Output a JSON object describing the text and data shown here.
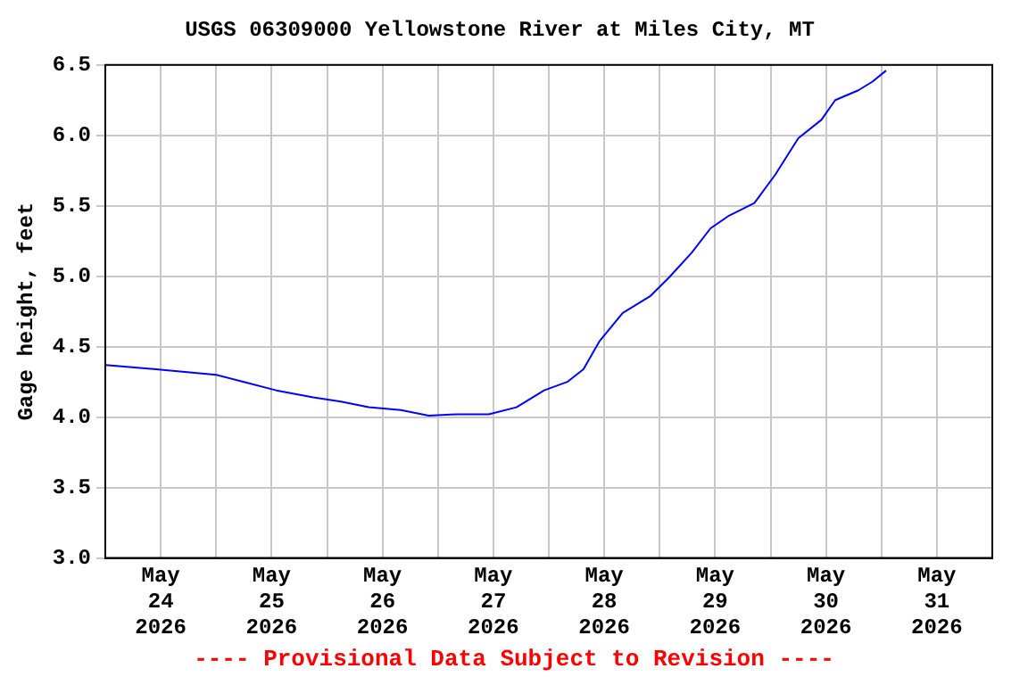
{
  "chart_data": {
    "type": "line",
    "title": "USGS 06309000 Yellowstone River at Miles City, MT",
    "ylabel": "Gage height, feet",
    "annotations": [
      "---- Provisional Data Subject to Revision ----"
    ],
    "x": [
      "2026-05-24T00:00",
      "2026-05-24T11:00",
      "2026-05-25T00:00",
      "2026-05-25T06:00",
      "2026-05-25T13:00",
      "2026-05-25T21:00",
      "2026-05-26T03:00",
      "2026-05-26T09:00",
      "2026-05-26T16:00",
      "2026-05-26T22:00",
      "2026-05-27T04:00",
      "2026-05-27T11:00",
      "2026-05-27T17:00",
      "2026-05-27T23:00",
      "2026-05-28T04:00",
      "2026-05-28T07:30",
      "2026-05-28T11:00",
      "2026-05-28T16:00",
      "2026-05-28T22:00",
      "2026-05-29T02:00",
      "2026-05-29T07:00",
      "2026-05-29T11:00",
      "2026-05-29T15:00",
      "2026-05-29T20:30",
      "2026-05-30T01:00",
      "2026-05-30T06:00",
      "2026-05-30T11:00",
      "2026-05-30T14:00",
      "2026-05-30T19:00",
      "2026-05-30T22:00",
      "2026-05-31T01:00"
    ],
    "series": [
      {
        "color": "#0000ff",
        "values": [
          4.37,
          4.34,
          4.3,
          4.25,
          4.19,
          4.14,
          4.11,
          4.07,
          4.05,
          4.01,
          4.02,
          4.02,
          4.07,
          4.19,
          4.25,
          4.34,
          4.54,
          4.74,
          4.86,
          4.99,
          5.17,
          5.34,
          5.43,
          5.52,
          5.72,
          5.98,
          6.11,
          6.25,
          6.32,
          6.38,
          6.46
        ]
      }
    ],
    "xlim": [
      "2026-05-24",
      "2026-06-01"
    ],
    "xticks": [
      {
        "value": "2026-05-24T12:00",
        "label": "May 24 2026"
      },
      {
        "value": "2026-05-25",
        "label": null
      },
      {
        "value": "2026-05-25T12:00",
        "label": "May 25 2026"
      },
      {
        "value": "2026-05-26",
        "label": null
      },
      {
        "value": "2026-05-26T12:00",
        "label": "May 26 2026"
      },
      {
        "value": "2026-05-27",
        "label": null
      },
      {
        "value": "2026-05-27T12:00",
        "label": "May 27 2026"
      },
      {
        "value": "2026-05-28",
        "label": null
      },
      {
        "value": "2026-05-28T12:00",
        "label": "May 28 2026"
      },
      {
        "value": "2026-05-29",
        "label": null
      },
      {
        "value": "2026-05-29T12:00",
        "label": "May 29 2026"
      },
      {
        "value": "2026-05-30",
        "label": null
      },
      {
        "value": "2026-05-30T12:00",
        "label": "May 30 2026"
      },
      {
        "value": "2026-05-31",
        "label": null
      },
      {
        "value": "2026-05-31T12:00",
        "label": "May 31 2026"
      }
    ],
    "ylim": [
      3.0,
      6.5
    ],
    "yticks": [
      {
        "value": 3,
        "label": "3.0"
      },
      {
        "value": 3.5,
        "label": "3.5"
      },
      {
        "value": 4,
        "label": "4.0"
      },
      {
        "value": 4.5,
        "label": "4.5"
      },
      {
        "value": 5,
        "label": "5.0"
      },
      {
        "value": 5.5,
        "label": "5.5"
      },
      {
        "value": 6,
        "label": "6.0"
      },
      {
        "value": 6.5,
        "label": "6.5"
      }
    ],
    "grid": true,
    "legend": false,
    "marker": "none",
    "line_style": "solid"
  }
}
